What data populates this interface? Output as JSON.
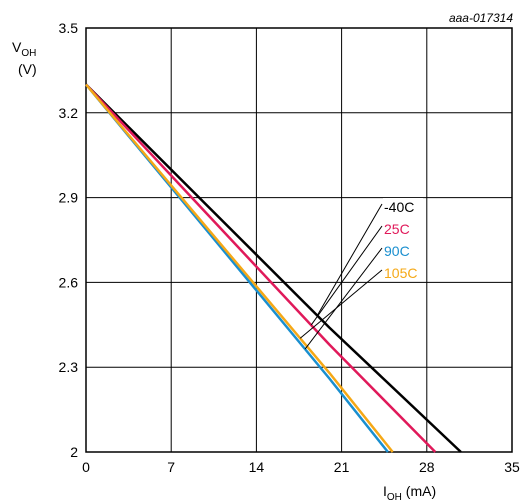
{
  "chart_data": {
    "type": "line",
    "chart_id": "aaa-017314",
    "ylabel": "VOH",
    "ylabel_unit": "(V)",
    "xlabel": "IOH (mA)",
    "xlim": [
      0,
      35
    ],
    "ylim": [
      2,
      3.5
    ],
    "x_ticks": [
      0,
      7,
      14,
      21,
      28,
      35
    ],
    "y_ticks": [
      2,
      2.3,
      2.6,
      2.9,
      3.2,
      3.5
    ],
    "x_tick_labels": [
      "0",
      "7",
      "14",
      "21",
      "28",
      "35"
    ],
    "y_tick_labels": [
      "2",
      "2.3",
      "2.6",
      "2.9",
      "3.2",
      "3.5"
    ],
    "grid": true,
    "series": [
      {
        "name": "-40C",
        "color": "#000000",
        "x": [
          0,
          10,
          20,
          30.8
        ],
        "y": [
          3.3,
          2.87,
          2.44,
          2.0
        ]
      },
      {
        "name": "25C",
        "color": "#e0195a",
        "x": [
          0,
          10,
          20,
          28.7
        ],
        "y": [
          3.3,
          2.84,
          2.38,
          2.0
        ]
      },
      {
        "name": "90C",
        "color": "#1a8fcf",
        "x": [
          0,
          10,
          20,
          24.8
        ],
        "y": [
          3.3,
          2.78,
          2.26,
          2.0
        ]
      },
      {
        "name": "105C",
        "color": "#f5a816",
        "x": [
          0,
          10,
          20,
          25.2
        ],
        "y": [
          3.3,
          2.79,
          2.28,
          2.0
        ]
      }
    ],
    "legend_placement": "right, with leader lines to curves"
  }
}
